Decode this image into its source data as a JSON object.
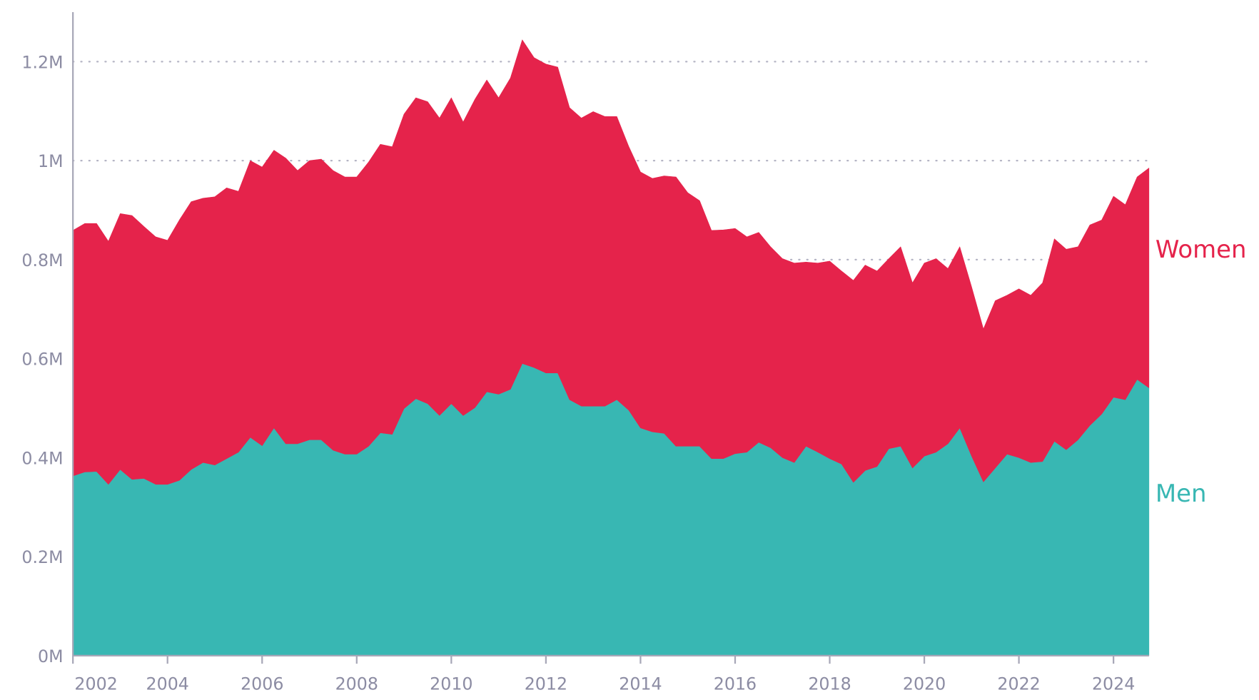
{
  "chart_data": {
    "type": "stacked_area",
    "x": [
      2002,
      2002.25,
      2002.5,
      2002.75,
      2003,
      2003.25,
      2003.5,
      2003.75,
      2004,
      2004.25,
      2004.5,
      2004.75,
      2005,
      2005.25,
      2005.5,
      2005.75,
      2006,
      2006.25,
      2006.5,
      2006.75,
      2007,
      2007.25,
      2007.5,
      2007.75,
      2008,
      2008.25,
      2008.5,
      2008.75,
      2009,
      2009.25,
      2009.5,
      2009.75,
      2010,
      2010.25,
      2010.5,
      2010.75,
      2011,
      2011.25,
      2011.5,
      2011.75,
      2012,
      2012.25,
      2012.5,
      2012.75,
      2013,
      2013.25,
      2013.5,
      2013.75,
      2014,
      2014.25,
      2014.5,
      2014.75,
      2015,
      2015.25,
      2015.5,
      2015.75,
      2016,
      2016.25,
      2016.5,
      2016.75,
      2017,
      2017.25,
      2017.5,
      2017.75,
      2018,
      2018.25,
      2018.5,
      2018.75,
      2019,
      2019.25,
      2019.5,
      2019.75,
      2020,
      2020.25,
      2020.5,
      2020.75,
      2021,
      2021.25,
      2021.5,
      2021.75,
      2022,
      2022.25,
      2022.5,
      2022.75,
      2023,
      2023.25,
      2023.5,
      2023.75,
      2024,
      2024.25,
      2024.5,
      2024.75
    ],
    "series": [
      {
        "name": "Men",
        "color": "#38b7b3",
        "values": [
          0.363,
          0.371,
          0.372,
          0.346,
          0.376,
          0.356,
          0.358,
          0.346,
          0.346,
          0.354,
          0.376,
          0.39,
          0.385,
          0.398,
          0.411,
          0.441,
          0.424,
          0.46,
          0.428,
          0.428,
          0.436,
          0.436,
          0.415,
          0.407,
          0.407,
          0.423,
          0.45,
          0.447,
          0.499,
          0.519,
          0.509,
          0.485,
          0.509,
          0.485,
          0.501,
          0.533,
          0.528,
          0.538,
          0.59,
          0.582,
          0.571,
          0.571,
          0.517,
          0.504,
          0.504,
          0.504,
          0.517,
          0.496,
          0.46,
          0.452,
          0.449,
          0.423,
          0.423,
          0.423,
          0.398,
          0.398,
          0.408,
          0.411,
          0.431,
          0.42,
          0.4,
          0.39,
          0.423,
          0.411,
          0.398,
          0.387,
          0.35,
          0.374,
          0.382,
          0.418,
          0.423,
          0.379,
          0.403,
          0.411,
          0.428,
          0.46,
          0.403,
          0.351,
          0.379,
          0.407,
          0.4,
          0.39,
          0.392,
          0.433,
          0.416,
          0.436,
          0.465,
          0.488,
          0.522,
          0.517,
          0.558,
          0.541
        ]
      },
      {
        "name": "Women",
        "color": "#e5234b",
        "values": [
          0.496,
          0.502,
          0.501,
          0.491,
          0.517,
          0.533,
          0.509,
          0.5,
          0.493,
          0.526,
          0.541,
          0.534,
          0.542,
          0.547,
          0.527,
          0.559,
          0.563,
          0.561,
          0.577,
          0.552,
          0.564,
          0.567,
          0.565,
          0.56,
          0.56,
          0.574,
          0.583,
          0.581,
          0.595,
          0.608,
          0.61,
          0.601,
          0.618,
          0.593,
          0.623,
          0.63,
          0.599,
          0.629,
          0.654,
          0.626,
          0.624,
          0.618,
          0.59,
          0.582,
          0.595,
          0.585,
          0.572,
          0.533,
          0.517,
          0.512,
          0.52,
          0.544,
          0.512,
          0.496,
          0.461,
          0.462,
          0.455,
          0.435,
          0.424,
          0.406,
          0.402,
          0.403,
          0.372,
          0.382,
          0.399,
          0.39,
          0.408,
          0.415,
          0.395,
          0.384,
          0.403,
          0.374,
          0.39,
          0.391,
          0.354,
          0.366,
          0.342,
          0.309,
          0.338,
          0.321,
          0.341,
          0.338,
          0.361,
          0.409,
          0.405,
          0.39,
          0.405,
          0.392,
          0.406,
          0.394,
          0.409,
          0.444
        ]
      }
    ],
    "xlim": [
      2002,
      2024.75
    ],
    "xticks": [
      2002,
      2004,
      2006,
      2008,
      2010,
      2012,
      2014,
      2016,
      2018,
      2020,
      2022,
      2024
    ],
    "ylim": [
      0,
      1.3
    ],
    "yticks": [
      {
        "value": 0,
        "label": "0M"
      },
      {
        "value": 0.2,
        "label": "0.2M"
      },
      {
        "value": 0.4,
        "label": "0.4M"
      },
      {
        "value": 0.6,
        "label": "0.6M"
      },
      {
        "value": 0.8,
        "label": "0.8M"
      },
      {
        "value": 1,
        "label": "1M"
      },
      {
        "value": 1.2,
        "label": "1.2M"
      }
    ],
    "grid": true
  }
}
